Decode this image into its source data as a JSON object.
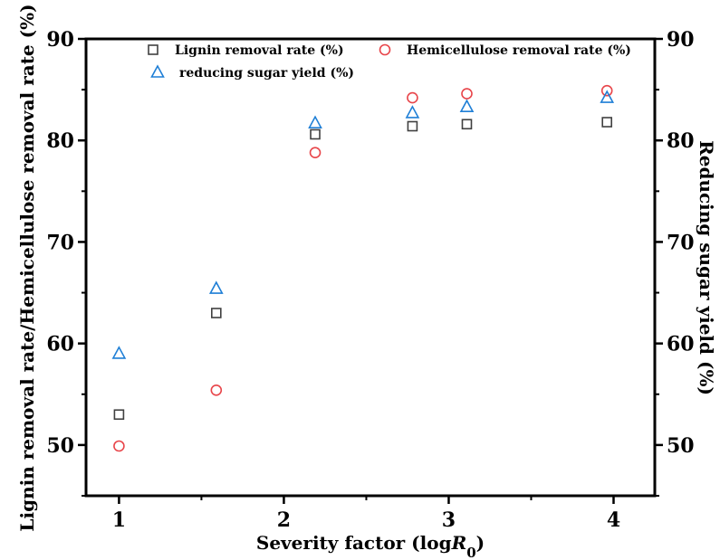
{
  "chart_data": {
    "type": "scatter",
    "xlabel": "Severity factor (log",
    "xlabel_italic": "R",
    "xlabel_sub": "0",
    "xlabel_close": ")",
    "ylabel_left": "Lignin removal rate/Hemicellulose removal rate (%)",
    "ylabel_right": "Reducing sugar yield (%)",
    "xlim": [
      0.8,
      4.25
    ],
    "ylim": [
      45,
      90
    ],
    "xticks": [
      1,
      2,
      3,
      4
    ],
    "yticks": [
      50,
      60,
      70,
      80,
      90
    ],
    "legend_placement": "top",
    "series": [
      {
        "name": "Lignin removal rate (%)",
        "marker": "square",
        "color": "#404040",
        "points": [
          [
            1.0,
            53.0
          ],
          [
            1.59,
            63.0
          ],
          [
            2.19,
            80.6
          ],
          [
            2.78,
            81.4
          ],
          [
            3.11,
            81.6
          ],
          [
            3.96,
            81.8
          ]
        ]
      },
      {
        "name": "Hemicellulose removal rate (%)",
        "marker": "circle",
        "color": "#e8454a",
        "points": [
          [
            1.0,
            49.9
          ],
          [
            1.59,
            55.4
          ],
          [
            2.19,
            78.8
          ],
          [
            2.78,
            84.2
          ],
          [
            3.11,
            84.6
          ],
          [
            3.96,
            84.9
          ]
        ]
      },
      {
        "name": "reducing sugar yield (%)",
        "marker": "triangle",
        "color": "#1f7fd6",
        "points": [
          [
            1.0,
            59.0
          ],
          [
            1.59,
            65.4
          ],
          [
            2.19,
            81.7
          ],
          [
            2.78,
            82.7
          ],
          [
            3.11,
            83.3
          ],
          [
            3.96,
            84.2
          ]
        ]
      }
    ]
  }
}
